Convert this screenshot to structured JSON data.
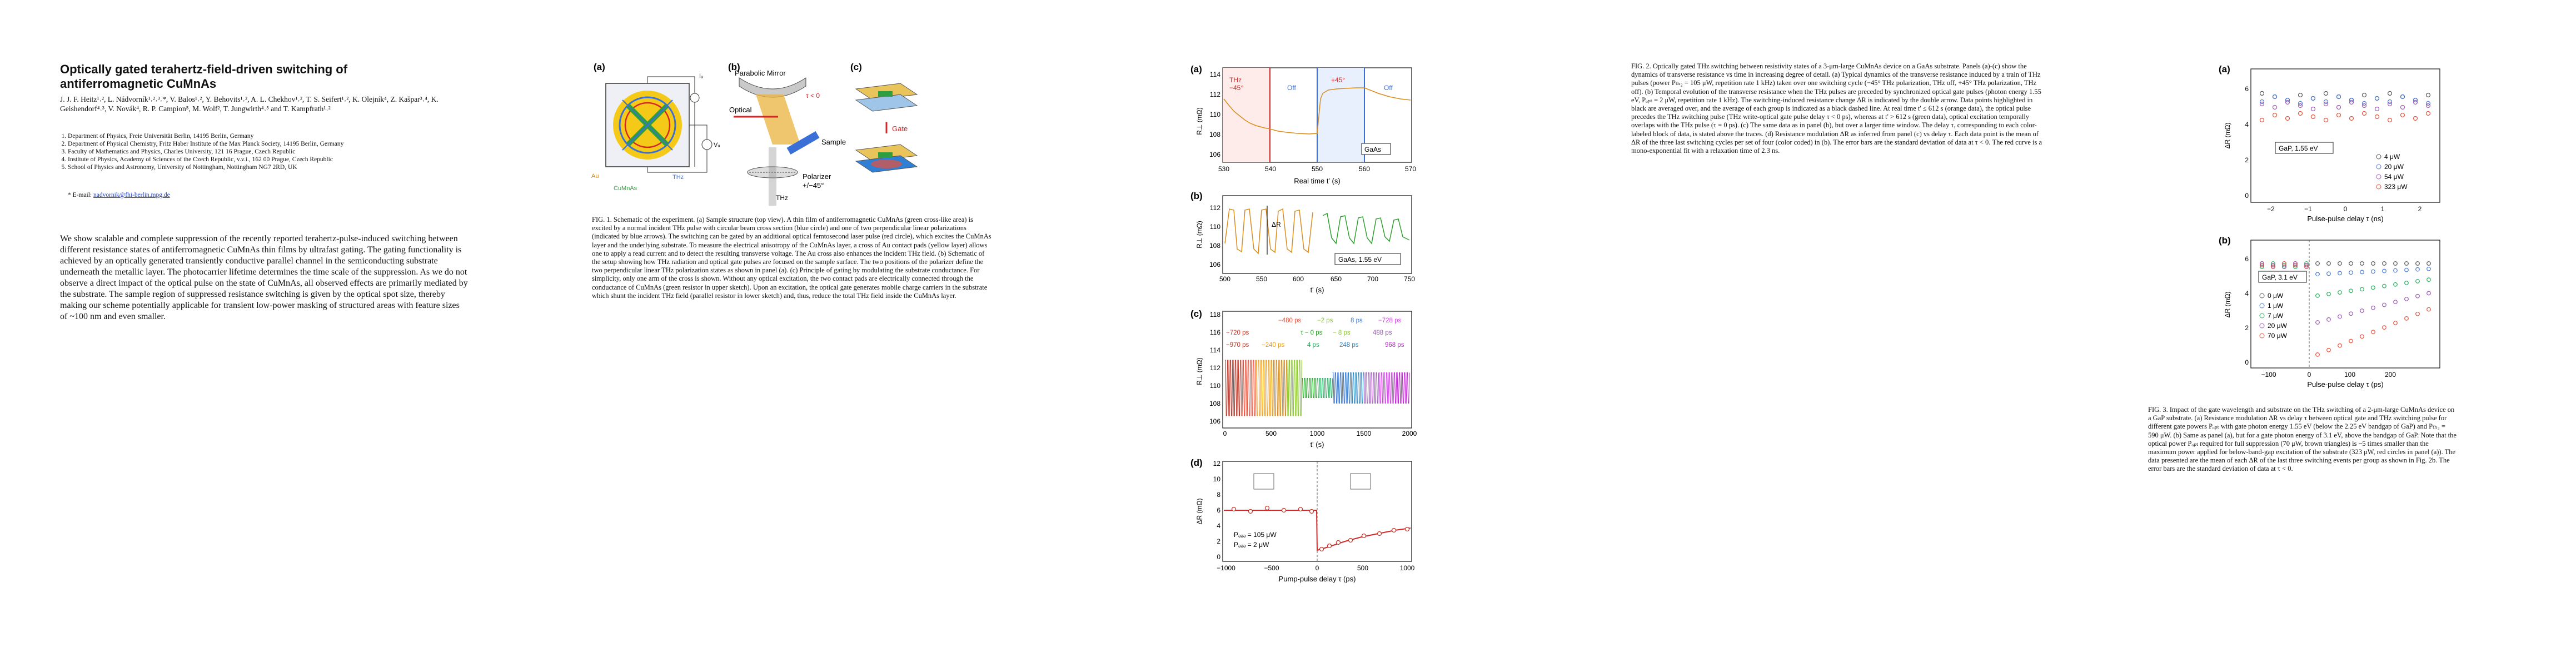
{
  "paper": {
    "title": "Optically gated terahertz-field-driven switching of antiferromagnetic CuMnAs",
    "authors": "J. J. F. Heitz¹˒², L. Nádvorník¹˒²˒³˒*, V. Balos¹˒², Y. Behovits¹˒², A. L. Chekhov¹˒², T. S. Seifert¹˒², K. Olejník⁴, Z. Kašpar³˒⁴, K. Geishendorf⁴˒³, V. Novák⁴, R. P. Campion⁵, M. Wolf², T. Jungwirth⁴˒⁵ and T. Kampfrath¹˒²",
    "affiliations": [
      "Department of Physics, Freie Universität Berlin, 14195 Berlin, Germany",
      "Department of Physical Chemistry, Fritz Haber Institute of the Max Planck Society, 14195 Berlin, Germany",
      "Faculty of Mathematics and Physics, Charles University, 121 16 Prague, Czech Republic",
      "Institute of Physics, Academy of Sciences of the Czech Republic, v.v.i., 162 00 Prague, Czech Republic",
      "School of Physics and Astronomy, University of Nottingham, Nottingham NG7 2RD, UK"
    ],
    "email_label": "* E-mail:",
    "email": "nadvornik@fhi-berlin.mpg.de",
    "abstract": "We show scalable and complete suppression of the recently reported terahertz-pulse-induced switching between different resistance states of antiferromagnetic CuMnAs thin films by ultrafast gating. The gating functionality is achieved by an optically generated transiently conductive parallel channel in the semiconducting substrate underneath the metallic layer. The photocarrier lifetime determines the time scale of the suppression. As we do not observe a direct impact of the optical pulse on the state of CuMnAs, all observed effects are primarily mediated by the substrate. The sample region of suppressed resistance switching is given by the optical spot size, thereby making our scheme potentially applicable for transient low-power masking of structured areas with feature sizes of ~100 nm and even smaller."
  },
  "fig1": {
    "labels": {
      "a": "(a)",
      "b": "(b)",
      "c": "(c)"
    },
    "a_labels": {
      "Iw": "Iᵤ",
      "Au": "Au",
      "CuMnAs": "CuMnAs",
      "THz": "THz",
      "Vw": "Vᵤ"
    },
    "b_labels": {
      "mirror": "Parabolic Mirror",
      "optical": "Optical",
      "sample": "Sample",
      "polarizer": "Polarizer",
      "polarizer_angle": "+/−45°",
      "thz": "THz",
      "tau": "τ < 0"
    },
    "c_labels": {
      "gate": "Gate"
    },
    "caption": "FIG. 1. Schematic of the experiment. (a) Sample structure (top view). A thin film of antiferromagnetic CuMnAs (green cross-like area) is excited by a normal incident THz pulse with circular beam cross section (blue circle) and one of two perpendicular linear polarizations (indicated by blue arrows). The switching can be gated by an additional optical femtosecond laser pulse (red circle), which excites the CuMnAs layer and the underlying substrate. To measure the electrical anisotropy of the CuMnAs layer, a cross of Au contact pads (yellow layer) allows one to apply a read current and to detect the resulting transverse voltage. The Au cross also enhances the incident THz field. (b) Schematic of the setup showing how THz radiation and optical gate pulses are focused on the sample surface. The two positions of the polarizer define the two perpendicular linear THz polarization states as shown in panel (a). (c) Principle of gating by modulating the substrate conductance. For simplicity, only one arm of the cross is shown. Without any optical excitation, the two contact pads are electrically connected through the conductance of CuMnAs (green resistor in upper sketch). Upon an excitation, the optical gate generates mobile charge carriers in the substrate which shunt the incident THz field (parallel resistor in lower sketch) and, thus, reduce the total THz field inside the CuMnAs layer."
  },
  "fig2": {
    "labels": {
      "a": "(a)",
      "b": "(b)",
      "c": "(c)",
      "d": "(d)"
    },
    "a": {
      "ylabel": "R⊥ (mΩ)",
      "xlabel": "Real time t' (s)",
      "yticks": [
        "106",
        "108",
        "110",
        "112",
        "114"
      ],
      "xticks": [
        "530",
        "540",
        "550",
        "560",
        "570"
      ],
      "ann_thz_minus": "THz",
      "ann_thz_minus_angle": "−45°",
      "ann_off1": "Off",
      "ann_thz_plus": "+45°",
      "ann_off2": "Off",
      "ann_gaas": "GaAs"
    },
    "b": {
      "ylabel": "R⊥ (mΩ)",
      "xlabel": "t' (s)",
      "yticks": [
        "106",
        "108",
        "110",
        "112"
      ],
      "xticks": [
        "500",
        "550",
        "600",
        "650",
        "700",
        "750"
      ],
      "ann_dr": "ΔR",
      "ann_gaas": "GaAs, 1.55 eV"
    },
    "c": {
      "ylabel": "R⊥ (mΩ)",
      "xlabel": "t' (s)",
      "yticks": [
        "106",
        "108",
        "110",
        "112",
        "114",
        "116",
        "118"
      ],
      "xticks": [
        "0",
        "500",
        "1000",
        "1500",
        "2000"
      ],
      "delays_row1": [
        {
          "t": "−480 ps",
          "c": "#e8503a"
        },
        {
          "t": "−2 ps",
          "c": "#8ac926"
        },
        {
          "t": "8 ps",
          "c": "#3a7bd5"
        },
        {
          "t": "−728 ps",
          "c": "#d946ef"
        }
      ],
      "delays_row2": [
        {
          "t": "−720 ps",
          "c": "#c0392b"
        },
        {
          "t": "τ − 0 ps",
          "c": "#2ca02c"
        },
        {
          "t": "− 8 ps",
          "c": "#8ac926"
        },
        {
          "t": "488 ps",
          "c": "#9b59b6"
        }
      ],
      "delays_row3": [
        {
          "t": "−970 ps",
          "c": "#b03a2e"
        },
        {
          "t": "−240 ps",
          "c": "#f39c12"
        },
        {
          "t": "4 ps",
          "c": "#27ae60"
        },
        {
          "t": "248 ps",
          "c": "#2e86c1"
        },
        {
          "t": "968 ps",
          "c": "#c026d3"
        }
      ]
    },
    "d": {
      "ylabel": "ΔR (mΩ)",
      "xlabel": "Pump-pulse delay τ (ps)",
      "yticks": [
        "0",
        "2",
        "4",
        "6",
        "8",
        "10",
        "12"
      ],
      "xticks": [
        "−1000",
        "−500",
        "0",
        "500",
        "1000"
      ],
      "legend1": "Pₔₔₔ = 105 μW",
      "legend2": "Pₔₔₔ = 2 μW",
      "legend1_sub": "THz",
      "legend2_sub": "opt"
    },
    "caption": "FIG. 2. Optically gated THz switching between resistivity states of a 3-μm-large CuMnAs device on a GaAs substrate. Panels (a)-(c) show the dynamics of transverse resistance vs time in increasing degree of detail. (a) Typical dynamics of the transverse resistance induced by a train of THz pulses (power Pₜₕ₂ = 105 μW, repetition rate 1 kHz) taken over one switching cycle (−45° THz polarization, THz off, +45° THz polarization, THz off). (b) Temporal evolution of the transverse resistance when the THz pulses are preceded by synchronized optical gate pulses (photon energy 1.55 eV, Pₒₚₜ = 2 μW, repetition rate 1 kHz). The switching-induced resistance change ΔR is indicated by the double arrow. Data points highlighted in black are averaged over, and the average of each group is indicated as a black dashed line. At real time t' ≤ 612 s (orange data), the optical pulse precedes the THz switching pulse (THz write-optical gate pulse delay τ < 0 ps), whereas at t' > 612 s (green data), optical excitation temporally overlaps with the THz pulse (τ = 0 ps). (c) The same data as in panel (b), but over a larger time window. The delay τ, corresponding to each color-labeled block of data, is stated above the traces. (d) Resistance modulation ΔR as inferred from panel (c) vs delay τ. Each data point is the mean of ΔR of the three last switching cycles per set of four (color coded) in (b). The error bars are the standard deviation of data at τ < 0. The red curve is a mono-exponential fit with a relaxation time of 2.3 ns."
  },
  "fig3": {
    "labels": {
      "a": "(a)",
      "b": "(b)"
    },
    "a": {
      "ylabel": "ΔR (mΩ)",
      "xlabel": "Pulse-pulse delay τ (ns)",
      "yticks": [
        "0",
        "2",
        "4",
        "6"
      ],
      "xticks": [
        "−2",
        "−1",
        "0",
        "1",
        "2"
      ],
      "ann": "GaP, 1.55 eV",
      "legend": [
        {
          "t": "4 μW",
          "c": "#555"
        },
        {
          "t": "20 μW",
          "c": "#4a7bd0"
        },
        {
          "t": "54 μW",
          "c": "#9b59b6"
        },
        {
          "t": "323 μW",
          "c": "#e8503a"
        }
      ]
    },
    "b": {
      "ylabel": "ΔR (mΩ)",
      "xlabel": "Pulse-pulse delay τ (ps)",
      "yticks": [
        "0",
        "2",
        "4",
        "6"
      ],
      "xticks": [
        "−100",
        "0",
        "100",
        "200"
      ],
      "ann": "GaP, 3.1 eV",
      "legend": [
        {
          "t": "0 μW",
          "c": "#555"
        },
        {
          "t": "1 μW",
          "c": "#4a7bd0"
        },
        {
          "t": "7 μW",
          "c": "#27ae60"
        },
        {
          "t": "20 μW",
          "c": "#9b59b6"
        },
        {
          "t": "70 μW",
          "c": "#e8503a"
        }
      ]
    },
    "caption": "FIG. 3. Impact of the gate wavelength and substrate on the THz switching of a 2-μm-large CuMnAs device on a GaP substrate. (a) Resistance modulation ΔR vs delay τ between optical gate and THz switching pulse for different gate powers Pₒₚₜ with gate photon energy 1.55 eV (below the 2.25 eV bandgap of GaP) and Pₜₕ₂ = 590 μW. (b) Same as panel (a), but for a gate photon energy of 3.1 eV, above the bandgap of GaP. Note that the optical power Pₒₚₜ required for full suppression (70 μW, brown triangles) is ~5 times smaller than the maximum power applied for below-band-gap excitation of the substrate (323 μW, red circles in panel (a)). The data presented are the mean of each ΔR of the last three switching events per group as shown in Fig. 2b. The error bars are the standard deviation of data at τ < 0."
  },
  "colors": {
    "accent_red": "#d62728",
    "accent_blue": "#3a6fd8",
    "orange_trace": "#d98c1a",
    "green_trace": "#2ca02c",
    "yellow_pad": "#f5c400",
    "cross_green": "#2e9e3e"
  }
}
